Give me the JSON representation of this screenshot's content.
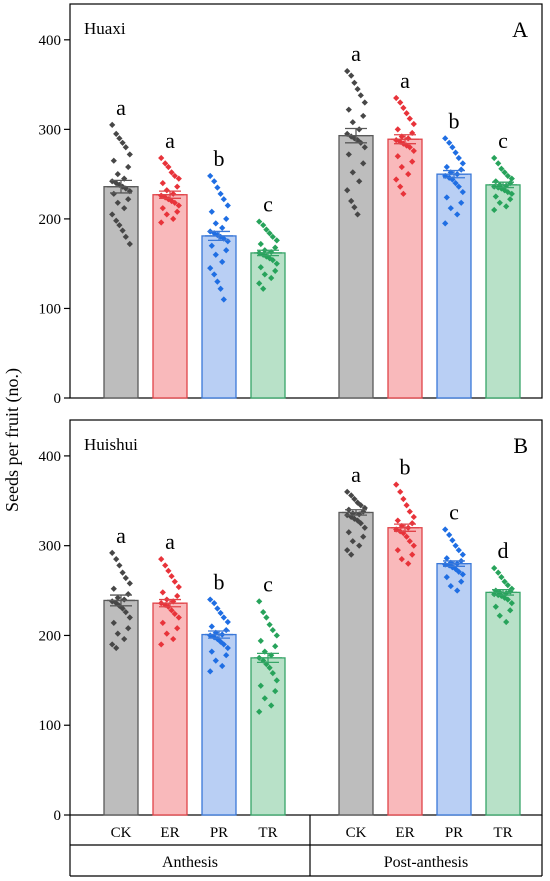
{
  "ylabel": "Seeds per fruit (no.)",
  "xgroups": [
    "Anthesis",
    "Post-anthesis"
  ],
  "treatments": [
    "CK",
    "ER",
    "PR",
    "TR"
  ],
  "colors": {
    "CK": {
      "fill": "#bdbdbd",
      "edge": "#595959",
      "dot": "#474747"
    },
    "ER": {
      "fill": "#f9b9bb",
      "edge": "#e04348",
      "dot": "#e8333a"
    },
    "PR": {
      "fill": "#b9cff4",
      "edge": "#3a78d8",
      "dot": "#1f6ee3"
    },
    "TR": {
      "fill": "#b8e1c8",
      "edge": "#37a568",
      "dot": "#27a35b"
    }
  },
  "chart_data": [
    {
      "type": "bar",
      "title": "Huaxi",
      "panel_label": "A",
      "ylim": [
        0,
        440
      ],
      "yticks": [
        0,
        100,
        200,
        300,
        400
      ],
      "categories": [
        "CK",
        "ER",
        "PR",
        "TR"
      ],
      "groups": [
        "Anthesis",
        "Post-anthesis"
      ],
      "series": [
        {
          "group": "Anthesis",
          "values": [
            236,
            227,
            181,
            162
          ],
          "errors": [
            7,
            4,
            5,
            3
          ],
          "letters": [
            "a",
            "a",
            "b",
            "c"
          ],
          "points": [
            [
              305,
              295,
              290,
              285,
              280,
              272,
              265,
              258,
              250,
              245,
              242,
              240,
              238,
              236,
              234,
              231,
              228,
              222,
              218,
              212,
              205,
              198,
              193,
              187,
              180,
              172
            ],
            [
              268,
              262,
              258,
              252,
              248,
              245,
              240,
              236,
              232,
              228,
              226,
              224,
              222,
              220,
              218,
              215,
              212,
              208,
              205,
              200,
              196
            ],
            [
              248,
              242,
              235,
              228,
              222,
              215,
              208,
              200,
              195,
              190,
              186,
              184,
              182,
              180,
              178,
              175,
              170,
              165,
              160,
              152,
              145,
              138,
              130,
              122,
              110
            ],
            [
              197,
              193,
              188,
              184,
              180,
              176,
              172,
              168,
              165,
              163,
              162,
              160,
              158,
              156,
              154,
              150,
              146,
              142,
              138,
              134,
              128,
              122
            ]
          ]
        },
        {
          "group": "Post-anthesis",
          "values": [
            293,
            289,
            250,
            238
          ],
          "errors": [
            8,
            5,
            4,
            3
          ],
          "letters": [
            "a",
            "a",
            "b",
            "c"
          ],
          "points": [
            [
              365,
              360,
              352,
              345,
              338,
              330,
              322,
              315,
              308,
              300,
              295,
              292,
              290,
              288,
              285,
              280,
              272,
              262,
              252,
              242,
              232,
              220,
              213,
              205
            ],
            [
              335,
              330,
              324,
              318,
              312,
              306,
              300,
              296,
              292,
              290,
              288,
              286,
              284,
              282,
              280,
              276,
              270,
              264,
              258,
              250,
              244,
              236,
              228
            ],
            [
              290,
              285,
              280,
              274,
              268,
              262,
              258,
              255,
              252,
              250,
              248,
              246,
              244,
              240,
              236,
              230,
              224,
              218,
              212,
              205,
              195
            ],
            [
              268,
              262,
              256,
              252,
              248,
              245,
              242,
              240,
              238,
              237,
              236,
              235,
              234,
              232,
              230,
              228,
              225,
              222,
              218,
              214,
              210
            ]
          ]
        }
      ]
    },
    {
      "type": "bar",
      "title": "Huishui",
      "panel_label": "B",
      "ylim": [
        0,
        440
      ],
      "yticks": [
        0,
        100,
        200,
        300,
        400
      ],
      "categories": [
        "CK",
        "ER",
        "PR",
        "TR"
      ],
      "groups": [
        "Anthesis",
        "Post-anthesis"
      ],
      "series": [
        {
          "group": "Anthesis",
          "values": [
            239,
            236,
            201,
            175
          ],
          "errors": [
            6,
            4,
            4,
            5
          ],
          "letters": [
            "a",
            "a",
            "b",
            "c"
          ],
          "points": [
            [
              292,
              285,
              278,
              270,
              264,
              258,
              252,
              246,
              242,
              240,
              238,
              236,
              233,
              230,
              226,
              220,
              214,
              208,
              202,
              196,
              190,
              186
            ],
            [
              285,
              278,
              272,
              266,
              260,
              254,
              248,
              244,
              240,
              238,
              236,
              234,
              232,
              228,
              224,
              220,
              214,
              208,
              202,
              196,
              190
            ],
            [
              240,
              236,
              230,
              225,
              220,
              215,
              210,
              206,
              203,
              201,
              200,
              198,
              196,
              193,
              190,
              186,
              182,
              178,
              172,
              166,
              160
            ],
            [
              238,
              226,
              220,
              212,
              206,
              200,
              194,
              188,
              182,
              178,
              175,
              172,
              168,
              164,
              158,
              150,
              144,
              138,
              130,
              122,
              115
            ]
          ]
        },
        {
          "group": "Post-anthesis",
          "values": [
            337,
            320,
            280,
            248
          ],
          "errors": [
            3,
            4,
            3,
            3
          ],
          "letters": [
            "a",
            "b",
            "c",
            "d"
          ],
          "points": [
            [
              360,
              356,
              352,
              348,
              345,
              342,
              340,
              338,
              336,
              335,
              334,
              332,
              330,
              328,
              325,
              320,
              315,
              310,
              305,
              300,
              295,
              290
            ],
            [
              368,
              360,
              352,
              345,
              338,
              332,
              328,
              325,
              322,
              320,
              318,
              316,
              314,
              310,
              305,
              300,
              295,
              290,
              285,
              280
            ],
            [
              318,
              312,
              306,
              300,
              295,
              290,
              286,
              283,
              281,
              280,
              279,
              278,
              276,
              274,
              271,
              268,
              265,
              260,
              255,
              250
            ],
            [
              275,
              270,
              265,
              260,
              256,
              252,
              250,
              249,
              248,
              247,
              246,
              245,
              244,
              242,
              240,
              236,
              232,
              228,
              222,
              215
            ]
          ]
        }
      ]
    }
  ]
}
